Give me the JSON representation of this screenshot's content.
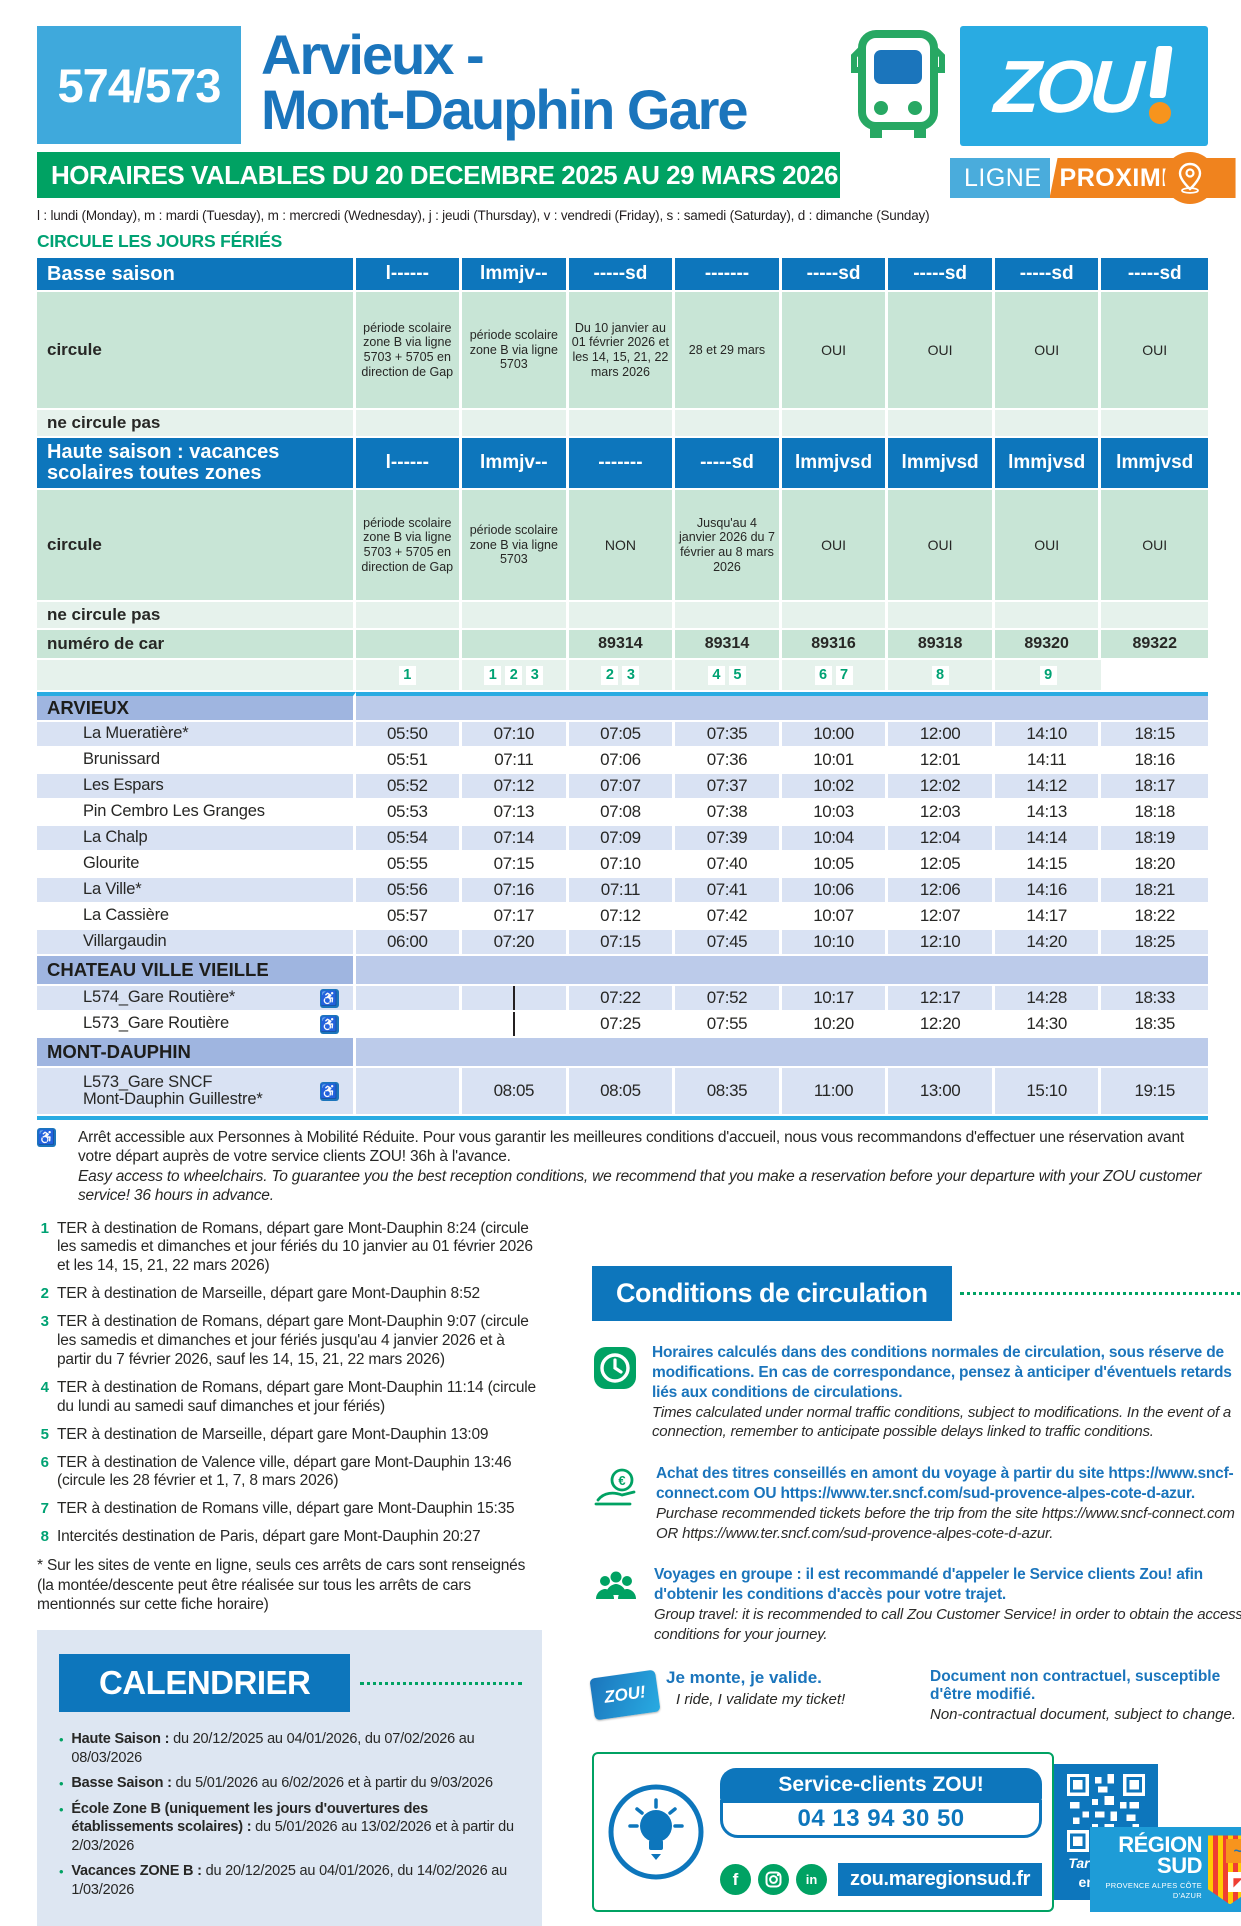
{
  "header": {
    "line_number": "574/573",
    "title_line1": "Arvieux -",
    "title_line2": "Mont-Dauphin Gare",
    "brand": "ZOU",
    "validity": "HORAIRES VALABLES DU 20 DECEMBRE 2025 AU 29 MARS 2026",
    "badge_ligne": "LIGNE",
    "badge_proximite": "PROXIMITÉ"
  },
  "legend": "l : lundi (Monday), m : mardi (Tuesday), m : mercredi (Wednesday), j : jeudi (Thursday), v : vendredi (Friday), s : samedi (Saturday), d : dimanche (Sunday)",
  "holiday_note": "CIRCULE LES JOURS FÉRIÉS",
  "colors": {
    "accent_blue": "#0d76bc",
    "accent_green": "#00a263",
    "accent_orange": "#f0831e",
    "cyan_rule": "#29abe2"
  },
  "timetable": {
    "basse": {
      "label": "Basse saison",
      "days": [
        "l------",
        "lmmjv--",
        "-----sd",
        "-------",
        "-----sd",
        "-----sd",
        "-----sd",
        "-----sd"
      ],
      "circule_label": "circule",
      "circule": [
        "période scolaire zone B via ligne 5703 + 5705 en direction de Gap",
        "période scolaire zone B via ligne 5703",
        "Du 10 janvier au 01 février 2026 et les 14, 15, 21, 22 mars 2026",
        "28 et 29 mars",
        "OUI",
        "OUI",
        "OUI",
        "OUI"
      ],
      "ne_circule_label": "ne circule pas"
    },
    "haute": {
      "label": "Haute saison : vacances scolaires toutes zones",
      "days": [
        "l------",
        "lmmjv--",
        "-------",
        "-----sd",
        "lmmjvsd",
        "lmmjvsd",
        "lmmjvsd",
        "lmmjvsd"
      ],
      "circule_label": "circule",
      "circule": [
        "période scolaire zone B via ligne 5703 + 5705 en direction de Gap",
        "période scolaire zone B via ligne 5703",
        "NON",
        "Jusqu'au 4 janvier 2026 du 7 février au 8 mars 2026",
        "OUI",
        "OUI",
        "OUI",
        "OUI"
      ],
      "ne_circule_label": "ne circule pas"
    },
    "car_numbers_label": "numéro de car",
    "car_numbers": [
      "",
      "",
      "89314",
      "89314",
      "89316",
      "89318",
      "89320",
      "89322"
    ],
    "note_refs": [
      "",
      "1",
      "1 2 3",
      "2 3",
      "4 5",
      "6 7",
      "8",
      "9"
    ],
    "sections": [
      {
        "name": "ARVIEUX",
        "stops": [
          {
            "name_lines": [
              "La Mueratière*"
            ],
            "pmr": false,
            "shade": "lav",
            "times": [
              "05:50",
              "07:10",
              "07:05",
              "07:35",
              "10:00",
              "12:00",
              "14:10",
              "18:15"
            ]
          },
          {
            "name_lines": [
              "Brunissard"
            ],
            "pmr": false,
            "shade": "white",
            "times": [
              "05:51",
              "07:11",
              "07:06",
              "07:36",
              "10:01",
              "12:01",
              "14:11",
              "18:16"
            ]
          },
          {
            "name_lines": [
              "Les Espars"
            ],
            "pmr": false,
            "shade": "lav",
            "times": [
              "05:52",
              "07:12",
              "07:07",
              "07:37",
              "10:02",
              "12:02",
              "14:12",
              "18:17"
            ]
          },
          {
            "name_lines": [
              "Pin Cembro Les Granges"
            ],
            "pmr": false,
            "shade": "white",
            "times": [
              "05:53",
              "07:13",
              "07:08",
              "07:38",
              "10:03",
              "12:03",
              "14:13",
              "18:18"
            ]
          },
          {
            "name_lines": [
              "La Chalp"
            ],
            "pmr": false,
            "shade": "lav",
            "times": [
              "05:54",
              "07:14",
              "07:09",
              "07:39",
              "10:04",
              "12:04",
              "14:14",
              "18:19"
            ]
          },
          {
            "name_lines": [
              "Glourite"
            ],
            "pmr": false,
            "shade": "white",
            "times": [
              "05:55",
              "07:15",
              "07:10",
              "07:40",
              "10:05",
              "12:05",
              "14:15",
              "18:20"
            ]
          },
          {
            "name_lines": [
              "La Ville*"
            ],
            "pmr": false,
            "shade": "lav",
            "times": [
              "05:56",
              "07:16",
              "07:11",
              "07:41",
              "10:06",
              "12:06",
              "14:16",
              "18:21"
            ]
          },
          {
            "name_lines": [
              "La Cassière"
            ],
            "pmr": false,
            "shade": "white",
            "times": [
              "05:57",
              "07:17",
              "07:12",
              "07:42",
              "10:07",
              "12:07",
              "14:17",
              "18:22"
            ]
          },
          {
            "name_lines": [
              "Villargaudin"
            ],
            "pmr": false,
            "shade": "lav",
            "times": [
              "06:00",
              "07:20",
              "07:15",
              "07:45",
              "10:10",
              "12:10",
              "14:20",
              "18:25"
            ]
          }
        ]
      },
      {
        "name": "CHATEAU VILLE VIEILLE",
        "stops": [
          {
            "name_lines": [
              "L574_Gare Routière*"
            ],
            "pmr": true,
            "shade": "lav",
            "times": [
              "",
              "|",
              "07:22",
              "07:52",
              "10:17",
              "12:17",
              "14:28",
              "18:33"
            ]
          },
          {
            "name_lines": [
              "L573_Gare Routière"
            ],
            "pmr": true,
            "shade": "white",
            "times": [
              "",
              "|",
              "07:25",
              "07:55",
              "10:20",
              "12:20",
              "14:30",
              "18:35"
            ]
          }
        ]
      },
      {
        "name": "MONT-DAUPHIN",
        "stops": [
          {
            "name_lines": [
              "L573_Gare SNCF",
              "Mont-Dauphin Guillestre*"
            ],
            "pmr": true,
            "shade": "lav",
            "tall": true,
            "times": [
              "",
              "08:05",
              "08:05",
              "08:35",
              "11:00",
              "13:00",
              "15:10",
              "19:15"
            ]
          }
        ]
      }
    ]
  },
  "pmr_note": {
    "fr": "Arrêt accessible aux Personnes à Mobilité Réduite. Pour vous garantir les meilleures conditions d'accueil, nous vous recommandons d'effectuer une réservation avant votre départ auprès de votre service clients ZOU! 36h à l'avance.",
    "en": "Easy access to wheelchairs. To guarantee you the best reception conditions, we recommend that you make a reservation before your departure with your ZOU customer service! 36 hours in advance."
  },
  "footnotes": [
    {
      "num": "1",
      "text": "TER à destination de Romans, départ gare Mont-Dauphin 8:24 (circule les samedis et dimanches et jour fériés du 10 janvier au 01 février 2026 et les 14, 15, 21, 22 mars 2026)"
    },
    {
      "num": "2",
      "text": "TER à destination de Marseille, départ gare Mont-Dauphin 8:52"
    },
    {
      "num": "3",
      "text": "TER à destination de Romans, départ gare Mont-Dauphin 9:07 (circule les samedis et dimanches et jour fériés jusqu'au 4 janvier 2026 et à partir du 7 février 2026, sauf les 14, 15, 21, 22 mars 2026)"
    },
    {
      "num": "4",
      "text": "TER à destination de Romans, départ gare Mont-Dauphin 11:14 (circule du lundi au samedi sauf dimanches et jour fériés)"
    },
    {
      "num": "5",
      "text": "TER à destination de Marseille, départ gare Mont-Dauphin 13:09"
    },
    {
      "num": "6",
      "text": "TER à destination de Valence ville, départ gare Mont-Dauphin 13:46 (circule les 28 février et 1, 7, 8 mars 2026)"
    },
    {
      "num": "7",
      "text": "TER à destination de Romans ville, départ gare Mont-Dauphin 15:35"
    },
    {
      "num": "8",
      "text": "Intercités destination de Paris, départ gare Mont-Dauphin 20:27"
    }
  ],
  "asterisk_note": "* Sur les sites de vente en ligne, seuls ces arrêts de cars sont renseignés (la montée/descente peut être réalisée sur tous les arrêts de cars mentionnés sur cette fiche horaire)",
  "conditions": {
    "title": "Conditions de circulation",
    "items": [
      {
        "icon": "clock-icon",
        "fr": "Horaires calculés dans des conditions normales de circulation, sous réserve de modifications. En cas de correspondance, pensez à anticiper d'éventuels retards liés aux conditions de circulations.",
        "en": "Times calculated under normal traffic conditions, subject to modifications. In the event of a connection, remember to anticipate possible delays linked to traffic conditions."
      },
      {
        "icon": "euro-hand-icon",
        "fr": "Achat des titres conseillés en amont du voyage à partir du site https://www.sncf-connect.com OU https://www.ter.sncf.com/sud-provence-alpes-cote-d-azur.",
        "en": "Purchase recommended tickets before the trip from the site https://www.sncf-connect.com OR https://www.ter.sncf.com/sud-provence-alpes-cote-d-azur."
      },
      {
        "icon": "group-icon",
        "fr": "Voyages en groupe : il est recommandé d'appeler le Service clients Zou! afin d'obtenir les conditions d'accès pour votre trajet.",
        "en": "Group travel: it is recommended to call Zou Customer Service! in order to obtain the access conditions for your journey."
      }
    ]
  },
  "validate": {
    "fr": "Je monte, je valide.",
    "en": "I ride, I validate my ticket!"
  },
  "document_note": {
    "fr": "Document non contractuel, susceptible d'être modifié.",
    "en": "Non-contractual document, subject to change."
  },
  "calendar": {
    "title": "CALENDRIER",
    "items": [
      {
        "label": "Haute Saison :",
        "text": "du 20/12/2025 au 04/01/2026, du 07/02/2026 au 08/03/2026"
      },
      {
        "label": "Basse Saison :",
        "text": "du 5/01/2026 au 6/02/2026 et à partir du 9/03/2026"
      },
      {
        "label": "École Zone B (uniquement les jours d'ouvertures des établissements scolaires) :",
        "text": "du 5/01/2026 au 13/02/2026 et à partir du 2/03/2026"
      },
      {
        "label": "Vacances ZONE B :",
        "text": "du 20/12/2025 au 04/01/2026, du 14/02/2026 au 1/03/2026"
      }
    ]
  },
  "footer": {
    "service_label": "Service-clients ZOU!",
    "phone": "04 13 94 30 50",
    "website": "zou.maregionsud.fr",
    "qr_line1": "Tarifs ZOU!",
    "qr_line2": "en 1 clic",
    "region_line1": "RÉGION",
    "region_line2": "SUD",
    "region_sub": "PROVENCE ALPES CÔTE D'AZUR"
  }
}
